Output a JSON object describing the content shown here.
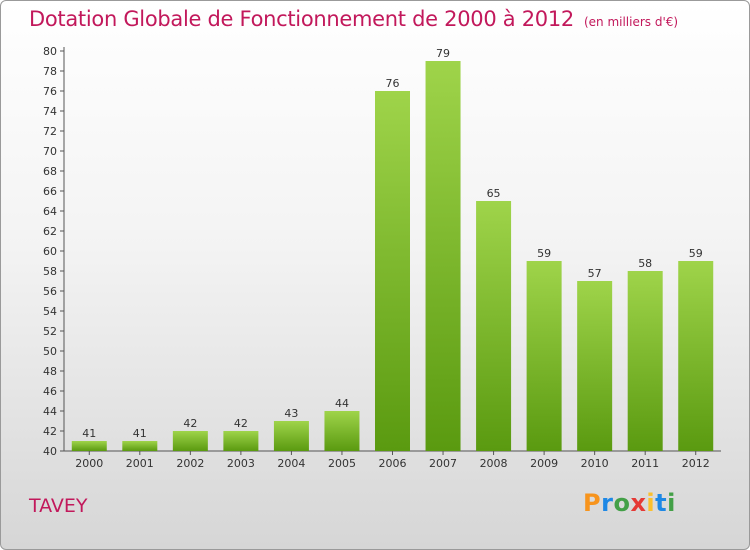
{
  "title": "Dotation Globale de Fonctionnement de 2000 à 2012",
  "unit": "(en milliers d'€)",
  "commune": "TAVEY",
  "logo": {
    "letters": [
      "P",
      "r",
      "o",
      "x",
      "i",
      "t",
      "i"
    ],
    "colors": [
      "#f7941d",
      "#1e88e5",
      "#43a047",
      "#e53935",
      "#fbc02d",
      "#1e88e5",
      "#43a047"
    ]
  },
  "colors": {
    "title": "#c2185b",
    "bar_top": "#9fd44a",
    "bar_bottom": "#5a9a10"
  },
  "chart_data": {
    "type": "bar",
    "title": "Dotation Globale de Fonctionnement de 2000 à 2012",
    "unit": "(en milliers d'€)",
    "categories": [
      "2000",
      "2001",
      "2002",
      "2003",
      "2004",
      "2005",
      "2006",
      "2007",
      "2008",
      "2009",
      "2010",
      "2011",
      "2012"
    ],
    "values": [
      41,
      41,
      42,
      42,
      43,
      44,
      76,
      79,
      65,
      59,
      57,
      58,
      59
    ],
    "ylim": [
      40,
      80
    ],
    "ytick_step": 2,
    "grid": false,
    "legend": "none"
  }
}
